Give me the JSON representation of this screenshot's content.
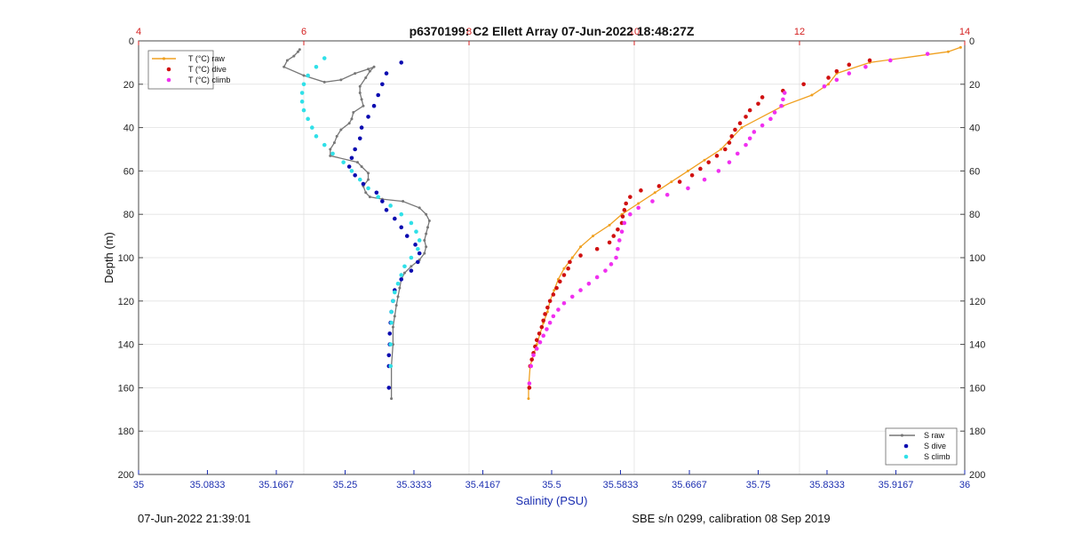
{
  "title": "p6370199: C2 Ellett Array 07-Jun-2022 18:48:27Z",
  "footer_left": "07-Jun-2022 21:39:01",
  "footer_right": "SBE s/n 0299, calibration 08 Sep 2019",
  "colors": {
    "raw_grey": "#777777",
    "raw_orange": "#f0a020",
    "dive_red": "#d01010",
    "dive_blue": "#0a0ab0",
    "climb_cyan": "#30e0e8",
    "climb_magenta": "#f030f0",
    "axis_blue": "#1a2db0",
    "axis_red": "#d42020"
  },
  "chart_data": {
    "type": "scatter",
    "title": "p6370199: C2 Ellett Array 07-Jun-2022 18:48:27Z",
    "ylabel": "Depth (m)",
    "ylim": [
      0,
      200
    ],
    "y_reversed": true,
    "y_ticks": [
      "0",
      "20",
      "40",
      "60",
      "80",
      "100",
      "120",
      "140",
      "160",
      "180",
      "200"
    ],
    "salinity_axis": {
      "label": "Salinity (PSU)",
      "lim": [
        35,
        36
      ],
      "ticks": [
        "35",
        "35.0833",
        "35.1667",
        "35.25",
        "35.3333",
        "35.4167",
        "35.5",
        "35.5833",
        "35.6667",
        "35.75",
        "35.8333",
        "35.9167",
        "36"
      ]
    },
    "temperature_axis": {
      "lim": [
        4,
        14
      ],
      "ticks": [
        "4",
        "6",
        "8",
        "10",
        "12",
        "14"
      ]
    },
    "grid": true,
    "legend_temperature": {
      "placement": "top-left",
      "entries": [
        "T (°C) raw",
        "T (°C) dive",
        "T (°C) climb"
      ]
    },
    "legend_salinity": {
      "placement": "bottom-right",
      "entries": [
        "S raw",
        "S dive",
        "S climb"
      ]
    },
    "series": [
      {
        "name": "S raw",
        "axis": "salinity",
        "style": "line-marker",
        "color": "#777777",
        "x": [
          35.195,
          35.193,
          35.188,
          35.18,
          35.176,
          35.2,
          35.225,
          35.245,
          35.262,
          35.278,
          35.285,
          35.28,
          35.275,
          35.268,
          35.268,
          35.27,
          35.272,
          35.26,
          35.258,
          35.255,
          35.245,
          35.24,
          35.237,
          35.232,
          35.232,
          35.265,
          35.27,
          35.278,
          35.278,
          35.272,
          35.275,
          35.28,
          35.295,
          35.32,
          35.34,
          35.348,
          35.352,
          35.35,
          35.348,
          35.346,
          35.348,
          35.346,
          35.34,
          35.33,
          35.322,
          35.318,
          35.316,
          35.314,
          35.312,
          35.31,
          35.308,
          35.308,
          35.306,
          35.306
        ],
        "y": [
          4,
          5,
          7,
          9,
          12,
          16,
          19,
          18,
          15,
          13,
          12,
          14,
          17,
          21,
          24,
          27,
          30,
          33,
          36,
          38,
          41,
          44,
          47,
          50,
          53,
          56,
          58,
          61,
          64,
          67,
          70,
          72,
          73,
          74,
          77,
          80,
          83,
          86,
          89,
          92,
          95,
          98,
          101,
          104,
          107,
          110,
          114,
          118,
          122,
          127,
          132,
          140,
          150,
          165
        ]
      },
      {
        "name": "S dive",
        "axis": "salinity",
        "style": "marker",
        "color": "#0a0ab0",
        "x": [
          35.318,
          35.3,
          35.295,
          35.29,
          35.285,
          35.278,
          35.27,
          35.268,
          35.262,
          35.258,
          35.255,
          35.262,
          35.272,
          35.288,
          35.295,
          35.3,
          35.31,
          35.318,
          35.325,
          35.335,
          35.34,
          35.338,
          35.33,
          35.318,
          35.31,
          35.308,
          35.306,
          35.305,
          35.304,
          35.304,
          35.303,
          35.303,
          35.303
        ],
        "y": [
          10,
          15,
          20,
          25,
          30,
          35,
          40,
          45,
          50,
          54,
          58,
          62,
          66,
          70,
          74,
          78,
          82,
          86,
          90,
          94,
          98,
          102,
          106,
          110,
          115,
          120,
          125,
          130,
          135,
          140,
          145,
          150,
          160
        ]
      },
      {
        "name": "S climb",
        "axis": "salinity",
        "style": "marker",
        "color": "#30e0e8",
        "x": [
          35.225,
          35.215,
          35.205,
          35.2,
          35.198,
          35.198,
          35.2,
          35.205,
          35.21,
          35.215,
          35.225,
          35.235,
          35.248,
          35.258,
          35.268,
          35.278,
          35.29,
          35.305,
          35.318,
          35.33,
          35.336,
          35.34,
          35.338,
          35.33,
          35.322,
          35.318,
          35.314,
          35.31,
          35.308,
          35.306,
          35.306,
          35.305,
          35.305
        ],
        "y": [
          8,
          12,
          16,
          20,
          24,
          28,
          32,
          36,
          40,
          44,
          48,
          52,
          56,
          60,
          64,
          68,
          72,
          76,
          80,
          84,
          88,
          92,
          96,
          100,
          104,
          108,
          112,
          116,
          120,
          125,
          130,
          140,
          150
        ]
      },
      {
        "name": "T (°C) raw",
        "axis": "temperature",
        "style": "line-marker",
        "color": "#f0a020",
        "x": [
          13.95,
          13.8,
          12.85,
          12.45,
          12.35,
          12.15,
          11.8,
          11.3,
          11.05,
          10.85,
          10.65,
          10.45,
          10.25,
          10.05,
          9.85,
          9.7,
          9.5,
          9.35,
          9.25,
          9.15,
          9.08,
          9.03,
          8.98,
          8.95,
          8.9,
          8.86,
          8.82,
          8.78,
          8.74,
          8.72,
          8.72
        ],
        "y": [
          3,
          5,
          10,
          15,
          20,
          25,
          30,
          40,
          50,
          55,
          60,
          65,
          70,
          75,
          80,
          85,
          90,
          95,
          100,
          105,
          110,
          115,
          120,
          125,
          130,
          135,
          140,
          145,
          150,
          160,
          165
        ]
      },
      {
        "name": "T (°C) dive",
        "axis": "temperature",
        "style": "marker",
        "color": "#d01010",
        "x": [
          12.85,
          12.6,
          12.45,
          12.35,
          12.05,
          11.8,
          11.55,
          11.5,
          11.4,
          11.35,
          11.28,
          11.22,
          11.18,
          11.15,
          11.1,
          11.0,
          10.9,
          10.8,
          10.7,
          10.55,
          10.3,
          10.08,
          9.95,
          9.9,
          9.88,
          9.86,
          9.85,
          9.8,
          9.75,
          9.7,
          9.55,
          9.35,
          9.22,
          9.2,
          9.15,
          9.1,
          9.06,
          9.02,
          8.98,
          8.95,
          8.92,
          8.9,
          8.88,
          8.85,
          8.82,
          8.8,
          8.78,
          8.76,
          8.74,
          8.73
        ],
        "y": [
          9,
          11,
          14,
          17,
          20,
          23,
          26,
          29,
          32,
          35,
          38,
          41,
          44,
          47,
          50,
          53,
          56,
          59,
          62,
          65,
          67,
          69,
          72,
          75,
          78,
          81,
          84,
          87,
          90,
          93,
          96,
          99,
          102,
          105,
          108,
          111,
          114,
          117,
          120,
          123,
          126,
          129,
          132,
          135,
          138,
          141,
          144,
          147,
          150,
          160
        ]
      },
      {
        "name": "T (°C) climb",
        "axis": "temperature",
        "style": "marker",
        "color": "#f030f0",
        "x": [
          13.55,
          13.1,
          12.8,
          12.6,
          12.45,
          12.3,
          11.82,
          11.8,
          11.78,
          11.7,
          11.65,
          11.55,
          11.45,
          11.4,
          11.35,
          11.25,
          11.15,
          11.02,
          10.85,
          10.65,
          10.4,
          10.22,
          10.05,
          9.95,
          9.88,
          9.85,
          9.82,
          9.8,
          9.78,
          9.72,
          9.65,
          9.55,
          9.45,
          9.35,
          9.25,
          9.15,
          9.08,
          9.02,
          8.98,
          8.94,
          8.9,
          8.86,
          8.82,
          8.78,
          8.75,
          8.73
        ],
        "y": [
          6,
          9,
          12,
          15,
          18,
          21,
          24,
          27,
          30,
          33,
          36,
          39,
          42,
          45,
          48,
          52,
          56,
          60,
          64,
          68,
          71,
          74,
          77,
          80,
          84,
          88,
          92,
          96,
          100,
          103,
          106,
          109,
          112,
          115,
          118,
          121,
          124,
          127,
          130,
          133,
          136,
          139,
          142,
          145,
          150,
          158
        ]
      }
    ]
  }
}
